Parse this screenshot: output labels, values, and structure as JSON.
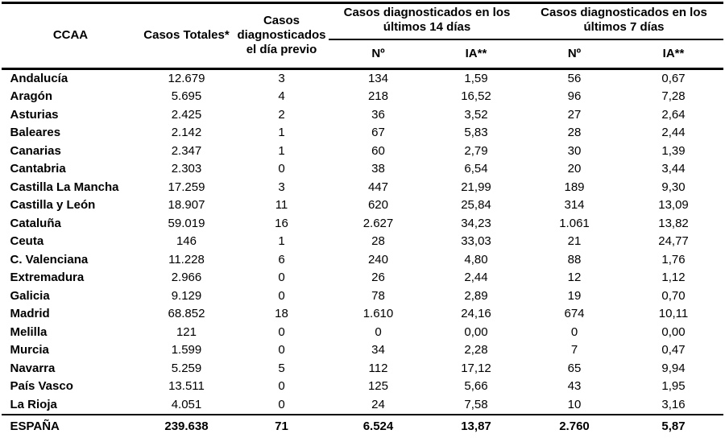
{
  "header": {
    "ccaa": "CCAA",
    "casos_totales": "Casos Totales*",
    "dia_previo": "Casos diagnosticados el día previo",
    "group_14dias": "Casos diagnosticados en los últimos 14 días",
    "group_7dias": "Casos diagnosticados en los últimos 7 días",
    "num_14": "Nº",
    "ia_14": "IA**",
    "num_7": "Nº",
    "ia_7": "IA**"
  },
  "colors": {
    "text": "#000000",
    "background": "#ffffff",
    "border": "#000000"
  },
  "chart_data": {
    "type": "table",
    "columns": [
      "CCAA",
      "Casos Totales*",
      "Casos diagnosticados el día previo",
      "Casos diagnosticados en los últimos 14 días - Nº",
      "Casos diagnosticados en los últimos 14 días - IA**",
      "Casos diagnosticados en los últimos 7 días - Nº",
      "Casos diagnosticados en los últimos 7 días - IA**"
    ],
    "rows": [
      [
        "Andalucía",
        "12.679",
        "3",
        "134",
        "1,59",
        "56",
        "0,67"
      ],
      [
        "Aragón",
        "5.695",
        "4",
        "218",
        "16,52",
        "96",
        "7,28"
      ],
      [
        "Asturias",
        "2.425",
        "2",
        "36",
        "3,52",
        "27",
        "2,64"
      ],
      [
        "Baleares",
        "2.142",
        "1",
        "67",
        "5,83",
        "28",
        "2,44"
      ],
      [
        "Canarias",
        "2.347",
        "1",
        "60",
        "2,79",
        "30",
        "1,39"
      ],
      [
        "Cantabria",
        "2.303",
        "0",
        "38",
        "6,54",
        "20",
        "3,44"
      ],
      [
        "Castilla La Mancha",
        "17.259",
        "3",
        "447",
        "21,99",
        "189",
        "9,30"
      ],
      [
        "Castilla y León",
        "18.907",
        "11",
        "620",
        "25,84",
        "314",
        "13,09"
      ],
      [
        "Cataluña",
        "59.019",
        "16",
        "2.627",
        "34,23",
        "1.061",
        "13,82"
      ],
      [
        "Ceuta",
        "146",
        "1",
        "28",
        "33,03",
        "21",
        "24,77"
      ],
      [
        "C. Valenciana",
        "11.228",
        "6",
        "240",
        "4,80",
        "88",
        "1,76"
      ],
      [
        "Extremadura",
        "2.966",
        "0",
        "26",
        "2,44",
        "12",
        "1,12"
      ],
      [
        "Galicia",
        "9.129",
        "0",
        "78",
        "2,89",
        "19",
        "0,70"
      ],
      [
        "Madrid",
        "68.852",
        "18",
        "1.610",
        "24,16",
        "674",
        "10,11"
      ],
      [
        "Melilla",
        "121",
        "0",
        "0",
        "0,00",
        "0",
        "0,00"
      ],
      [
        "Murcia",
        "1.599",
        "0",
        "34",
        "2,28",
        "7",
        "0,47"
      ],
      [
        "Navarra",
        "5.259",
        "5",
        "112",
        "17,12",
        "65",
        "9,94"
      ],
      [
        "País Vasco",
        "13.511",
        "0",
        "125",
        "5,66",
        "43",
        "1,95"
      ],
      [
        "La Rioja",
        "4.051",
        "0",
        "24",
        "7,58",
        "10",
        "3,16"
      ]
    ],
    "total_row": [
      "ESPAÑA",
      "239.638",
      "71",
      "6.524",
      "13,87",
      "2.760",
      "5,87"
    ]
  }
}
